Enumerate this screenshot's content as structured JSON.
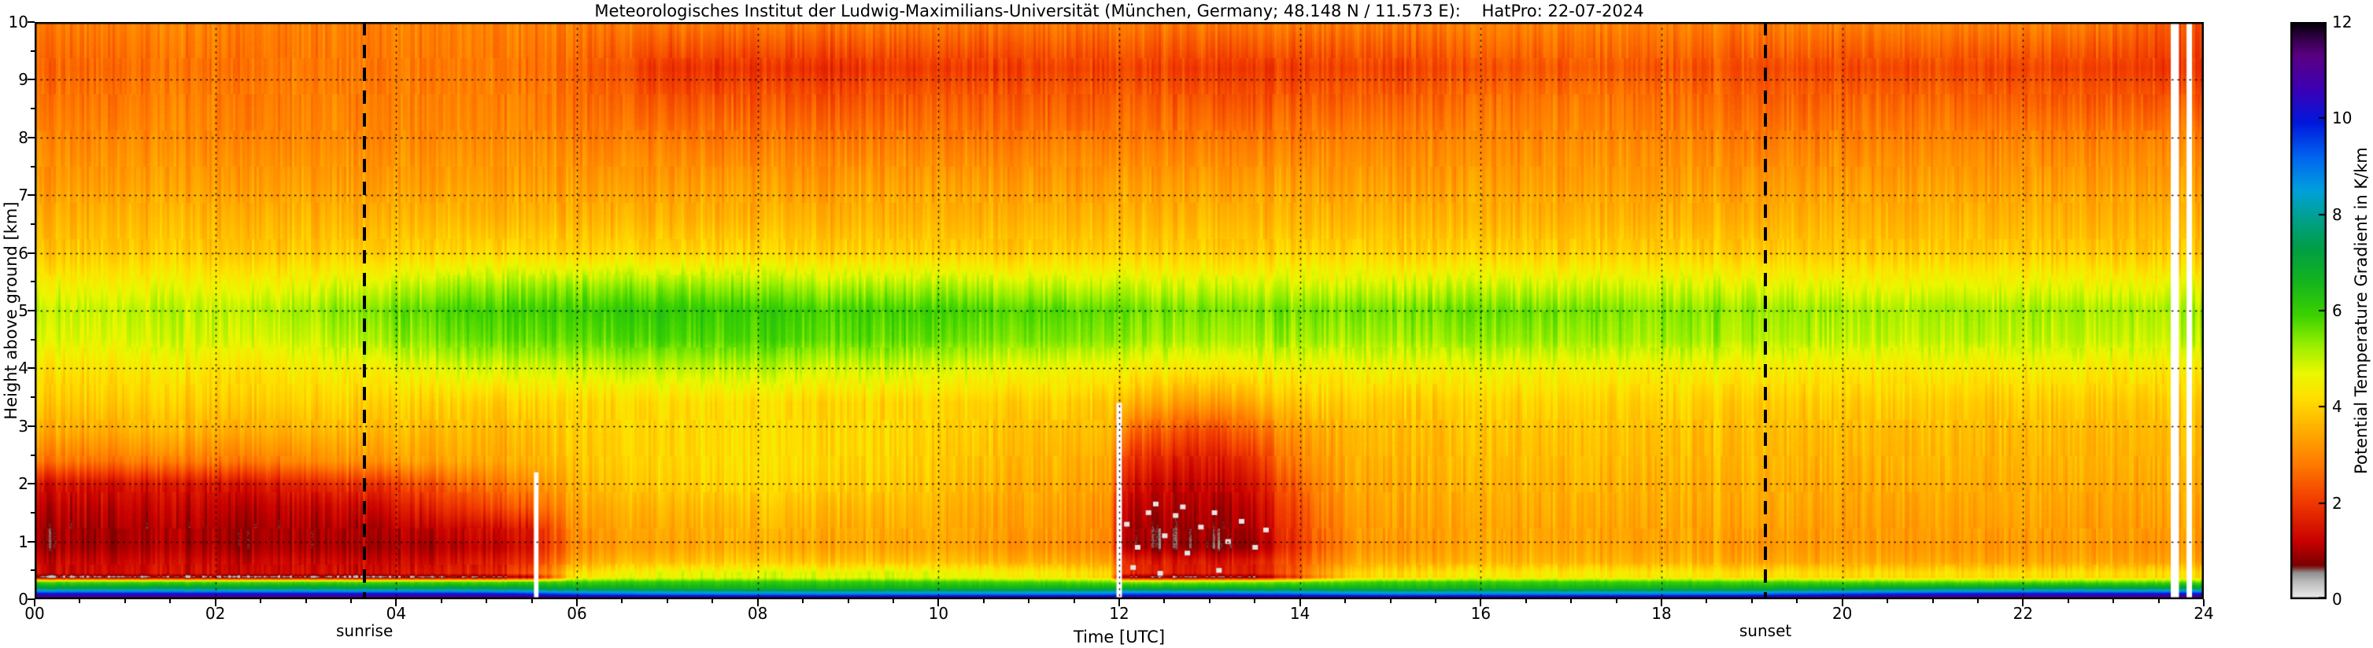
{
  "title": "Meteorologisches Institut der Ludwig-Maximilians-Universität (München, Germany; 48.148 N / 11.573 E):    HatPro: 22-07-2024",
  "axes": {
    "x_label": "Time [UTC]",
    "y_label": "Height above ground [km]",
    "x_ticks": [
      "00",
      "02",
      "04",
      "06",
      "08",
      "10",
      "12",
      "14",
      "16",
      "18",
      "20",
      "22",
      "24"
    ],
    "y_ticks": [
      "0",
      "1",
      "2",
      "3",
      "4",
      "5",
      "6",
      "7",
      "8",
      "9",
      "10"
    ],
    "x_range": [
      0,
      24
    ],
    "y_range": [
      0,
      10
    ]
  },
  "colorbar": {
    "label": "Potential Temperature Gradient in K/km",
    "ticks": [
      "0",
      "2",
      "4",
      "6",
      "8",
      "10",
      "12"
    ],
    "range": [
      0,
      12
    ]
  },
  "annotations": {
    "sunrise": {
      "label": "sunrise",
      "time_utc": 3.65
    },
    "sunset": {
      "label": "sunset",
      "time_utc": 19.15
    }
  },
  "chart_data": {
    "type": "heatmap",
    "title": "Meteorologisches Institut der Ludwig-Maximilians-Universität (München, Germany; 48.148 N / 11.573 E):    HatPro: 22-07-2024",
    "xlabel": "Time [UTC]",
    "ylabel": "Height above ground [km]",
    "value_label": "Potential Temperature Gradient in K/km",
    "x_range": [
      0,
      24
    ],
    "y_range": [
      0,
      10
    ],
    "value_range": [
      0,
      12
    ],
    "grid": "dotted",
    "x": [
      0,
      1,
      2,
      3,
      4,
      5,
      5.5,
      6,
      7,
      8,
      9,
      10,
      11,
      11.9,
      12,
      12.5,
      13,
      13.5,
      13.9,
      14.5,
      15,
      16,
      17,
      18,
      19,
      20,
      21,
      22,
      23,
      24
    ],
    "heights_km": [
      0.0,
      0.08,
      0.18,
      0.3,
      0.38,
      0.45,
      0.65,
      0.9,
      1.2,
      1.6,
      2.0,
      2.4,
      2.9,
      3.4,
      4.0,
      4.5,
      5.0,
      5.4,
      6.0,
      6.6,
      7.2,
      8.0,
      8.6,
      9.2,
      10.0
    ],
    "values": [
      [
        11.8,
        11.8,
        11.8,
        11.8,
        11.8,
        11.8,
        11.8,
        11.8,
        11.8,
        11.8,
        11.8,
        11.8,
        11.8,
        11.8,
        11.8,
        11.8,
        11.8,
        11.8,
        11.8,
        11.8,
        11.8,
        11.8,
        11.8,
        11.8,
        11.8,
        11.8,
        11.8,
        11.8,
        11.8,
        11.8
      ],
      [
        10.4,
        10.4,
        10.4,
        10.4,
        10.4,
        10.3,
        10.0,
        9.6,
        9.3,
        9.2,
        9.2,
        9.2,
        9.2,
        9.3,
        9.6,
        9.7,
        9.7,
        9.6,
        9.5,
        9.3,
        9.2,
        9.2,
        9.2,
        9.2,
        9.4,
        9.8,
        10.2,
        10.4,
        10.4,
        10.4
      ],
      [
        7.6,
        7.6,
        7.6,
        7.6,
        7.6,
        7.5,
        7.3,
        7.1,
        6.9,
        6.8,
        6.8,
        6.8,
        6.9,
        7.0,
        7.1,
        7.1,
        7.1,
        7.0,
        7.0,
        6.9,
        6.8,
        6.8,
        6.8,
        6.9,
        7.0,
        7.2,
        7.4,
        7.5,
        7.5,
        7.5
      ],
      [
        5.7,
        5.7,
        5.7,
        5.7,
        5.7,
        5.7,
        5.8,
        5.9,
        6.0,
        6.0,
        6.0,
        5.9,
        5.8,
        5.6,
        5.3,
        5.3,
        5.3,
        5.4,
        5.5,
        5.7,
        5.9,
        5.9,
        5.9,
        5.9,
        5.8,
        5.7,
        5.6,
        5.6,
        5.6,
        5.6
      ],
      [
        0.4,
        0.4,
        0.4,
        0.4,
        0.4,
        0.5,
        0.9,
        4.4,
        4.6,
        4.7,
        4.7,
        4.6,
        4.4,
        4.1,
        0.6,
        0.5,
        0.5,
        0.6,
        1.8,
        3.9,
        4.1,
        4.3,
        4.3,
        4.3,
        4.2,
        4.1,
        4.1,
        4.1,
        4.1,
        4.1
      ],
      [
        1.4,
        1.4,
        1.4,
        1.4,
        1.5,
        1.7,
        2.2,
        4.3,
        4.7,
        4.8,
        4.8,
        4.7,
        4.5,
        4.2,
        1.8,
        1.7,
        1.6,
        1.7,
        2.4,
        4.0,
        4.2,
        4.4,
        4.4,
        4.4,
        4.3,
        4.2,
        4.2,
        4.2,
        4.2,
        4.2
      ],
      [
        1.3,
        1.3,
        1.3,
        1.3,
        1.3,
        1.5,
        1.8,
        3.5,
        3.8,
        3.9,
        3.8,
        3.8,
        3.6,
        3.4,
        1.7,
        1.6,
        1.5,
        1.6,
        2.2,
        3.3,
        3.5,
        3.6,
        3.6,
        3.6,
        3.5,
        3.5,
        3.4,
        3.4,
        3.4,
        3.4
      ],
      [
        1.0,
        1.0,
        1.0,
        1.0,
        1.0,
        1.1,
        1.4,
        3.1,
        3.4,
        3.5,
        3.4,
        3.4,
        3.2,
        3.0,
        0.9,
        0.9,
        0.8,
        0.9,
        1.8,
        3.0,
        3.2,
        3.4,
        3.4,
        3.4,
        3.3,
        3.3,
        3.2,
        3.2,
        3.2,
        3.2
      ],
      [
        1.0,
        1.0,
        1.0,
        1.0,
        1.1,
        1.3,
        1.5,
        3.2,
        3.5,
        3.6,
        3.5,
        3.5,
        3.3,
        3.1,
        1.0,
        0.9,
        0.9,
        1.0,
        1.9,
        3.1,
        3.3,
        3.4,
        3.4,
        3.4,
        3.4,
        3.3,
        3.3,
        3.3,
        3.3,
        3.3
      ],
      [
        1.2,
        1.2,
        1.2,
        1.2,
        1.5,
        2.1,
        2.4,
        3.4,
        3.7,
        3.8,
        3.7,
        3.6,
        3.4,
        3.2,
        1.2,
        1.1,
        1.0,
        1.2,
        2.1,
        3.2,
        3.4,
        3.5,
        3.5,
        3.5,
        3.5,
        3.4,
        3.4,
        3.4,
        3.4,
        3.4
      ],
      [
        1.5,
        1.5,
        1.5,
        1.7,
        2.1,
        2.7,
        3.0,
        3.7,
        4.0,
        4.1,
        4.0,
        3.8,
        3.6,
        3.4,
        1.5,
        1.3,
        1.2,
        1.5,
        2.4,
        3.4,
        3.5,
        3.6,
        3.6,
        3.6,
        3.6,
        3.5,
        3.5,
        3.5,
        3.5,
        3.5
      ],
      [
        2.8,
        2.8,
        2.8,
        3.0,
        3.3,
        3.4,
        3.5,
        3.9,
        4.1,
        4.2,
        4.1,
        3.9,
        3.7,
        3.5,
        1.9,
        1.7,
        1.5,
        1.9,
        2.8,
        3.5,
        3.6,
        3.7,
        3.7,
        3.7,
        3.7,
        3.6,
        3.6,
        3.6,
        3.6,
        3.6
      ],
      [
        3.5,
        3.5,
        3.5,
        3.6,
        3.7,
        3.6,
        3.7,
        4.0,
        4.1,
        4.2,
        4.1,
        4.0,
        3.8,
        3.7,
        2.7,
        2.4,
        2.1,
        2.6,
        3.2,
        3.6,
        3.7,
        3.8,
        3.8,
        3.8,
        3.8,
        3.7,
        3.7,
        3.7,
        3.7,
        3.7
      ],
      [
        3.9,
        3.9,
        3.9,
        4.0,
        4.0,
        3.9,
        4.0,
        4.1,
        4.2,
        4.2,
        4.1,
        4.0,
        4.0,
        3.9,
        3.6,
        3.4,
        3.2,
        3.5,
        3.8,
        3.9,
        3.9,
        4.0,
        4.0,
        4.0,
        4.0,
        3.9,
        3.9,
        3.9,
        3.9,
        3.9
      ],
      [
        4.3,
        4.3,
        4.3,
        4.4,
        4.6,
        4.8,
        4.8,
        4.9,
        5.0,
        5.0,
        4.9,
        4.8,
        4.7,
        4.6,
        4.5,
        4.4,
        4.4,
        4.5,
        4.5,
        4.5,
        4.5,
        4.6,
        4.5,
        4.5,
        4.5,
        4.4,
        4.4,
        4.4,
        4.4,
        4.4
      ],
      [
        4.8,
        4.8,
        4.8,
        4.9,
        5.3,
        5.6,
        5.6,
        5.7,
        5.8,
        5.8,
        5.7,
        5.6,
        5.5,
        5.4,
        5.3,
        5.2,
        5.2,
        5.2,
        5.2,
        5.2,
        5.2,
        5.3,
        5.2,
        5.2,
        5.2,
        5.0,
        5.0,
        5.0,
        5.0,
        5.0
      ],
      [
        5.0,
        5.0,
        5.0,
        5.2,
        5.6,
        5.9,
        5.9,
        6.0,
        6.1,
        6.0,
        5.9,
        5.9,
        5.8,
        5.7,
        5.6,
        5.5,
        5.5,
        5.5,
        5.5,
        5.5,
        5.5,
        5.6,
        5.5,
        5.4,
        5.4,
        5.2,
        5.2,
        5.2,
        5.2,
        5.2
      ],
      [
        4.6,
        4.6,
        4.6,
        4.7,
        5.0,
        5.3,
        5.3,
        5.4,
        5.4,
        5.3,
        5.2,
        5.2,
        5.1,
        5.0,
        5.0,
        4.9,
        4.9,
        4.9,
        4.9,
        4.9,
        4.9,
        5.0,
        4.9,
        4.9,
        4.9,
        4.7,
        4.7,
        4.7,
        4.7,
        4.7
      ],
      [
        3.9,
        3.9,
        3.9,
        3.9,
        4.0,
        4.1,
        4.1,
        4.1,
        4.1,
        4.1,
        4.0,
        4.0,
        4.0,
        4.0,
        4.0,
        4.0,
        4.0,
        4.0,
        4.0,
        4.0,
        4.0,
        4.0,
        4.0,
        4.0,
        4.0,
        3.9,
        3.9,
        3.9,
        3.9,
        3.9
      ],
      [
        3.6,
        3.6,
        3.6,
        3.6,
        3.6,
        3.6,
        3.6,
        3.6,
        3.6,
        3.6,
        3.6,
        3.6,
        3.6,
        3.6,
        3.6,
        3.6,
        3.6,
        3.6,
        3.6,
        3.6,
        3.6,
        3.6,
        3.6,
        3.6,
        3.6,
        3.6,
        3.6,
        3.6,
        3.6,
        3.6
      ],
      [
        3.3,
        3.3,
        3.3,
        3.3,
        3.3,
        3.3,
        3.3,
        3.3,
        3.3,
        3.3,
        3.3,
        3.3,
        3.3,
        3.3,
        3.3,
        3.3,
        3.3,
        3.3,
        3.3,
        3.3,
        3.3,
        3.3,
        3.3,
        3.3,
        3.3,
        3.3,
        3.3,
        3.3,
        3.3,
        3.3
      ],
      [
        3.0,
        3.0,
        3.0,
        3.0,
        3.0,
        3.0,
        3.0,
        2.9,
        2.8,
        2.8,
        2.8,
        2.8,
        2.8,
        2.8,
        2.8,
        2.8,
        2.8,
        2.8,
        2.8,
        2.9,
        2.9,
        3.0,
        3.0,
        3.0,
        2.9,
        2.9,
        2.9,
        2.9,
        2.9,
        2.9
      ],
      [
        2.8,
        2.8,
        2.9,
        2.9,
        2.9,
        2.9,
        2.9,
        2.7,
        2.4,
        2.4,
        2.4,
        2.5,
        2.5,
        2.5,
        2.5,
        2.5,
        2.4,
        2.4,
        2.4,
        2.5,
        2.5,
        2.7,
        2.8,
        2.8,
        2.6,
        2.6,
        2.6,
        2.5,
        2.5,
        2.4
      ],
      [
        2.6,
        2.6,
        2.7,
        2.8,
        2.8,
        2.8,
        2.7,
        2.6,
        2.0,
        1.9,
        1.9,
        2.0,
        2.1,
        2.1,
        2.1,
        2.1,
        2.0,
        2.0,
        2.0,
        2.1,
        2.1,
        2.3,
        2.4,
        2.4,
        2.3,
        2.2,
        2.2,
        2.1,
        2.1,
        1.9
      ],
      [
        2.9,
        2.9,
        2.9,
        2.9,
        2.9,
        2.9,
        2.9,
        2.9,
        2.8,
        2.8,
        2.8,
        2.8,
        2.8,
        2.8,
        2.8,
        2.8,
        2.8,
        2.8,
        2.8,
        2.8,
        2.8,
        2.9,
        2.9,
        2.9,
        2.9,
        2.9,
        2.9,
        2.9,
        2.8,
        2.2
      ]
    ],
    "colormap_stops": [
      {
        "value": 0.0,
        "color": "#f0f0f0"
      },
      {
        "value": 0.35,
        "color": "#bdbdbd"
      },
      {
        "value": 0.55,
        "color": "#8f8f8f"
      },
      {
        "value": 0.7,
        "color": "#7a0000"
      },
      {
        "value": 1.2,
        "color": "#c80000"
      },
      {
        "value": 2.0,
        "color": "#f03800"
      },
      {
        "value": 2.8,
        "color": "#ff7a00"
      },
      {
        "value": 3.6,
        "color": "#ffb400"
      },
      {
        "value": 4.2,
        "color": "#ffe000"
      },
      {
        "value": 4.7,
        "color": "#eaf800"
      },
      {
        "value": 5.3,
        "color": "#96ee00"
      },
      {
        "value": 5.9,
        "color": "#3cd200"
      },
      {
        "value": 6.6,
        "color": "#14b41e"
      },
      {
        "value": 7.3,
        "color": "#009e46"
      },
      {
        "value": 7.9,
        "color": "#00a08c"
      },
      {
        "value": 8.5,
        "color": "#00a0dc"
      },
      {
        "value": 9.2,
        "color": "#0064f0"
      },
      {
        "value": 9.9,
        "color": "#0018dc"
      },
      {
        "value": 10.6,
        "color": "#3c00b4"
      },
      {
        "value": 11.3,
        "color": "#5a0082"
      },
      {
        "value": 11.7,
        "color": "#2d0041"
      },
      {
        "value": 12.0,
        "color": "#000000"
      }
    ],
    "missing_data_columns": [
      {
        "time_utc": 5.55,
        "half_width_h": 0.025,
        "from_km": 0,
        "to_km": 2.2
      },
      {
        "time_utc": 12.0,
        "half_width_h": 0.03,
        "from_km": 0,
        "to_km": 3.4
      },
      {
        "time_utc": 23.68,
        "half_width_h": 0.045,
        "from_km": 0,
        "to_km": 10
      },
      {
        "time_utc": 23.84,
        "half_width_h": 0.03,
        "from_km": 0,
        "to_km": 10
      }
    ],
    "speckles": [
      [
        12.08,
        1.3
      ],
      [
        12.2,
        0.9
      ],
      [
        12.32,
        1.5
      ],
      [
        12.5,
        1.1
      ],
      [
        12.62,
        1.45
      ],
      [
        12.75,
        0.8
      ],
      [
        12.9,
        1.25
      ],
      [
        13.05,
        1.5
      ],
      [
        13.2,
        1.0
      ],
      [
        13.35,
        1.35
      ],
      [
        13.5,
        0.9
      ],
      [
        13.62,
        1.2
      ],
      [
        12.15,
        0.55
      ],
      [
        12.45,
        0.45
      ],
      [
        13.1,
        0.5
      ],
      [
        12.7,
        1.6
      ],
      [
        12.4,
        1.65
      ]
    ],
    "sunrise_utc": 3.65,
    "sunset_utc": 19.15
  }
}
